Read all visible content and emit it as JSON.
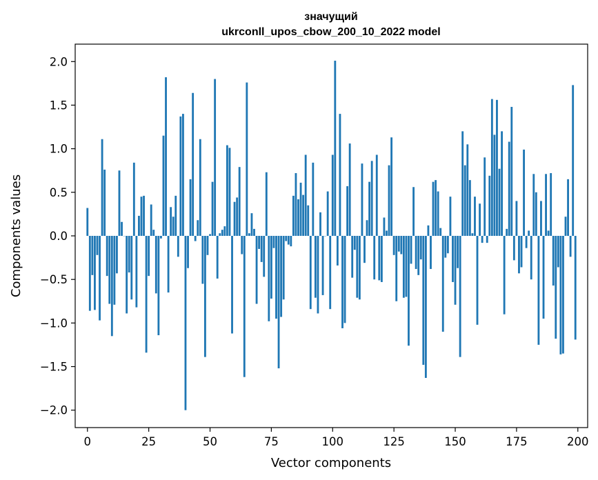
{
  "chart_data": {
    "type": "bar",
    "title_line1": "значущий",
    "title_line2": "ukrconll_upos_cbow_200_10_2022 model",
    "xlabel": "Vector components",
    "ylabel": "Components values",
    "xlim": [
      -5,
      204
    ],
    "ylim": [
      -2.2,
      2.2
    ],
    "xticks": [
      0,
      25,
      50,
      75,
      100,
      125,
      150,
      175,
      200
    ],
    "xtick_labels": [
      "0",
      "25",
      "50",
      "75",
      "100",
      "125",
      "150",
      "175",
      "200"
    ],
    "yticks": [
      -2.0,
      -1.5,
      -1.0,
      -0.5,
      0.0,
      0.5,
      1.0,
      1.5,
      2.0
    ],
    "ytick_labels": [
      "−2.0",
      "−1.5",
      "−1.0",
      "−0.5",
      "0.0",
      "0.5",
      "1.0",
      "1.5",
      "2.0"
    ],
    "bar_color": "#1f77b4",
    "values": [
      0.32,
      -0.86,
      -0.45,
      -0.85,
      -0.22,
      -0.97,
      1.11,
      0.76,
      -0.46,
      -0.78,
      -1.15,
      -0.79,
      -0.43,
      0.75,
      0.16,
      0.0,
      -0.89,
      -0.42,
      -0.73,
      0.84,
      -0.82,
      0.23,
      0.45,
      0.46,
      -1.34,
      -0.46,
      0.36,
      0.07,
      -0.66,
      -1.14,
      -0.03,
      1.15,
      1.82,
      -0.65,
      0.33,
      0.22,
      0.46,
      -0.24,
      1.37,
      1.4,
      -2.0,
      -0.37,
      0.65,
      1.64,
      -0.06,
      0.18,
      1.11,
      -0.55,
      -1.39,
      -0.22,
      0.02,
      0.62,
      1.8,
      -0.49,
      0.03,
      0.07,
      0.11,
      1.04,
      1.01,
      -1.12,
      0.39,
      0.44,
      0.79,
      -0.21,
      -1.62,
      1.76,
      0.03,
      0.26,
      0.08,
      -0.78,
      -0.15,
      -0.3,
      -0.47,
      0.73,
      -0.98,
      -0.72,
      -0.14,
      -0.95,
      -1.52,
      -0.93,
      -0.73,
      -0.06,
      -0.1,
      -0.12,
      0.46,
      0.72,
      0.42,
      0.61,
      0.47,
      0.93,
      0.35,
      -0.84,
      0.84,
      -0.71,
      -0.89,
      0.27,
      -0.68,
      0.0,
      0.51,
      -0.84,
      0.93,
      2.01,
      -0.34,
      1.4,
      -1.06,
      -1.0,
      0.57,
      1.06,
      -0.48,
      -0.16,
      -0.71,
      -0.73,
      0.83,
      -0.31,
      0.18,
      0.62,
      0.86,
      -0.5,
      0.93,
      -0.51,
      -0.53,
      0.21,
      0.06,
      0.81,
      1.13,
      -0.22,
      -0.75,
      -0.18,
      -0.21,
      -0.71,
      -0.7,
      -1.26,
      -0.32,
      0.56,
      -0.38,
      -0.45,
      -0.27,
      -1.48,
      -1.63,
      0.12,
      -0.38,
      0.62,
      0.64,
      0.51,
      0.09,
      -1.1,
      -0.25,
      -0.2,
      0.45,
      -0.53,
      -0.79,
      -0.37,
      -1.39,
      1.2,
      0.81,
      1.05,
      0.64,
      0.03,
      0.45,
      -1.02,
      0.37,
      -0.08,
      0.9,
      -0.08,
      0.69,
      1.57,
      1.16,
      1.56,
      0.77,
      1.2,
      -0.9,
      0.08,
      1.08,
      1.48,
      -0.28,
      0.4,
      -0.43,
      -0.36,
      0.99,
      -0.14,
      0.06,
      -0.5,
      0.71,
      0.5,
      -1.25,
      0.4,
      -0.95,
      0.71,
      0.06,
      0.72,
      -0.57,
      -1.18,
      -0.36,
      -1.36,
      -1.35,
      0.22,
      0.65,
      -0.24,
      1.73,
      -1.19
    ]
  }
}
